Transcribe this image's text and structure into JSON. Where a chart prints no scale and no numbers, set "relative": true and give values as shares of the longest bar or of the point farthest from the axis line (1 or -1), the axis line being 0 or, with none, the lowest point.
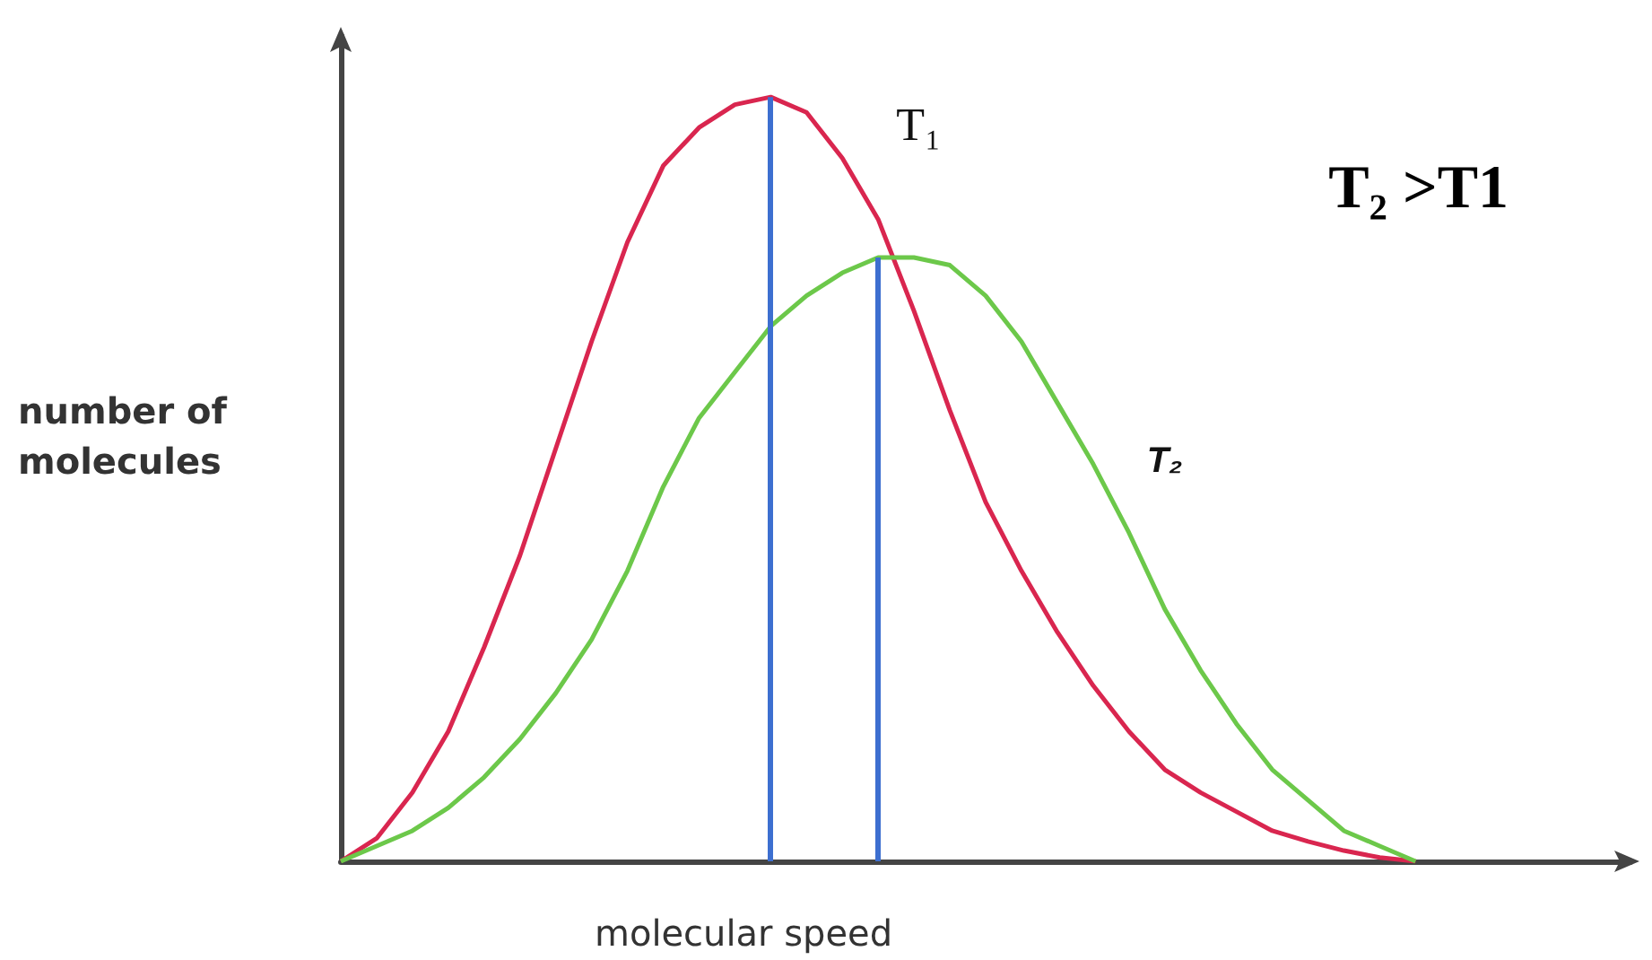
{
  "chart_data": {
    "type": "line",
    "relative": true,
    "xlabel": "molecular speed",
    "ylabel": "number of molecules",
    "annotations": [
      "T₂ >T1"
    ],
    "legend": false,
    "grid": false,
    "marker": "none",
    "line_style": "solid",
    "categories": [
      null,
      null,
      null,
      null,
      null,
      null,
      null,
      null,
      null,
      null,
      null,
      null,
      null,
      null,
      null,
      null,
      null,
      null,
      null,
      null,
      null,
      null,
      null,
      null,
      null,
      null,
      null,
      null,
      null,
      null,
      null
    ],
    "series": [
      {
        "name": "T₁",
        "color": "#d9264f",
        "values": [
          0,
          0.03,
          0.09,
          0.17,
          0.28,
          0.4,
          0.54,
          0.68,
          0.81,
          0.91,
          0.96,
          0.99,
          1,
          0.98,
          0.92,
          0.84,
          0.72,
          0.59,
          0.47,
          0.38,
          0.3,
          0.23,
          0.17,
          0.12,
          0.09,
          0.065,
          0.04,
          0.026,
          0.014,
          0.005,
          0
        ]
      },
      {
        "name": "T₂",
        "color": "#6cc84a",
        "values": [
          0,
          0.02,
          0.04,
          0.07,
          0.11,
          0.16,
          0.22,
          0.29,
          0.38,
          0.49,
          0.58,
          0.64,
          0.7,
          0.74,
          0.77,
          0.79,
          0.79,
          0.78,
          0.74,
          0.68,
          0.6,
          0.52,
          0.43,
          0.33,
          0.25,
          0.18,
          0.12,
          0.08,
          0.04,
          0.02,
          0
        ]
      }
    ]
  }
}
